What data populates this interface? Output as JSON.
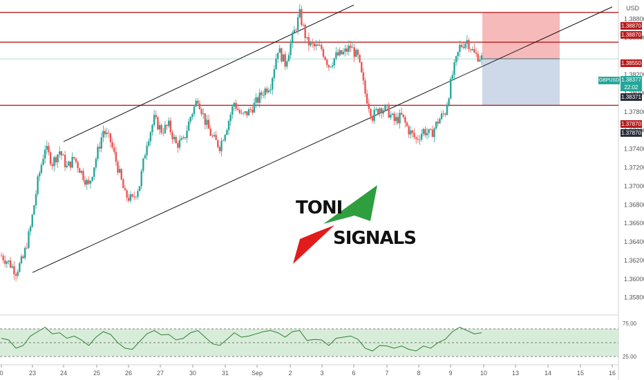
{
  "currency_label": "USD",
  "colors": {
    "up": "#26a69a",
    "down": "#ef5350",
    "resistance": "#b71c1c",
    "trend": "#111111",
    "stop_zone": "#f4a9a9",
    "target_zone": "#b8c7e0",
    "rsi_fill": "#c8e6c9",
    "rsi_line": "#2e7d32",
    "symbol_tag": "#26a69a",
    "price_tag_dark": "#2a2e39"
  },
  "logo": {
    "line1": "TONI",
    "line2": "SIGNALS"
  },
  "price_tags": {
    "r1": "1.38870",
    "r1_dup": "1.38870",
    "r2": "1.38550",
    "symbol": "GBPUSD",
    "last_price": "1.38377",
    "countdown": "22:02",
    "entry": "1.38371",
    "s1": "1.37870",
    "s1_dup": "1.37870"
  },
  "rsi_labels": {
    "upper": "75.00",
    "lower": "25.00"
  },
  "chart_data": {
    "type": "candlestick",
    "symbol": "GBPUSD",
    "price_axis": {
      "ticks": [
        "1.38800",
        "1.38600",
        "1.38200",
        "1.38000",
        "1.37800",
        "1.37600",
        "1.37400",
        "1.37200",
        "1.37000",
        "1.36800",
        "1.36600",
        "1.36400",
        "1.36200",
        "1.36000",
        "1.35800"
      ],
      "range": [
        1.3572,
        1.3895
      ]
    },
    "time_axis": {
      "ticks": [
        "0",
        "23",
        "24",
        "25",
        "26",
        "27",
        "30",
        "31",
        "Sep",
        "2",
        "3",
        "6",
        "7",
        "8",
        "9",
        "10",
        "13",
        "14",
        "15",
        "16"
      ]
    },
    "horizontal_levels": [
      1.3887,
      1.3855,
      1.3787
    ],
    "trendlines": [
      {
        "from": [
          "24",
          1.3748
        ],
        "to": [
          "6",
          1.3895
        ]
      },
      {
        "from": [
          "23",
          1.3607
        ],
        "to": [
          "16",
          1.3893
        ]
      }
    ],
    "position": {
      "entry": 1.38371,
      "stop": 1.3887,
      "target": 1.3787
    },
    "price_path": [
      1.3625,
      1.3618,
      1.3608,
      1.3622,
      1.3655,
      1.3705,
      1.3742,
      1.3725,
      1.3738,
      1.372,
      1.373,
      1.3715,
      1.37,
      1.373,
      1.376,
      1.3748,
      1.372,
      1.369,
      1.3685,
      1.3702,
      1.3748,
      1.3772,
      1.376,
      1.3765,
      1.3745,
      1.3748,
      1.3775,
      1.3795,
      1.377,
      1.3752,
      1.3743,
      1.3765,
      1.379,
      1.3775,
      1.378,
      1.379,
      1.3802,
      1.381,
      1.3848,
      1.3832,
      1.386,
      1.3885,
      1.3855,
      1.385,
      1.3848,
      1.383,
      1.384,
      1.3843,
      1.385,
      1.3838,
      1.38,
      1.3775,
      1.3785,
      1.3782,
      1.377,
      1.3775,
      1.376,
      1.375,
      1.376,
      1.3755,
      1.377,
      1.378,
      1.382,
      1.385,
      1.3857,
      1.3842,
      1.3838
    ],
    "rsi": {
      "levels": [
        75,
        50,
        25
      ],
      "values": [
        58,
        55,
        40,
        45,
        62,
        70,
        78,
        66,
        68,
        58,
        62,
        55,
        45,
        60,
        70,
        65,
        50,
        40,
        38,
        52,
        66,
        72,
        64,
        65,
        55,
        58,
        68,
        72,
        60,
        48,
        45,
        56,
        68,
        60,
        62,
        66,
        70,
        72,
        68,
        60,
        70,
        72,
        54,
        56,
        55,
        45,
        58,
        60,
        62,
        56,
        40,
        35,
        45,
        44,
        40,
        44,
        38,
        35,
        44,
        40,
        50,
        56,
        70,
        78,
        72,
        66,
        68
      ]
    }
  }
}
